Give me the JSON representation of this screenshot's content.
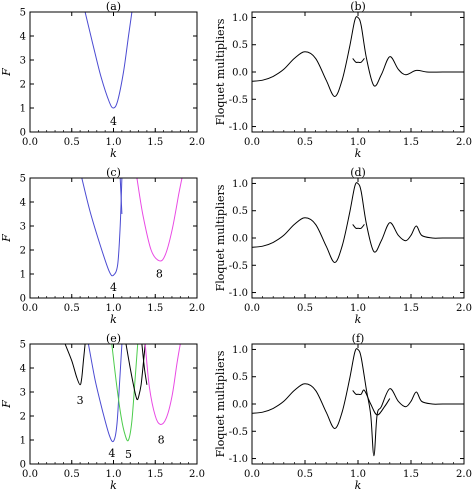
{
  "chart_data": [
    {
      "id": "a",
      "type": "line",
      "title": "(a)",
      "xlabel": "k",
      "ylabel": "F",
      "xlim": [
        0,
        2
      ],
      "ylim": [
        0,
        5
      ],
      "xticks": [
        "0.0",
        "0.5",
        "1.0",
        "1.5",
        "2.0"
      ],
      "yticks": [
        "0",
        "1",
        "2",
        "3",
        "4",
        "5"
      ],
      "series": [
        {
          "color": "#4b4bd2",
          "x": [
            0.66,
            0.75,
            0.85,
            0.95,
            1.0,
            1.05,
            1.12,
            1.18,
            1.22
          ],
          "y": [
            5.0,
            3.7,
            2.3,
            1.25,
            1.0,
            1.3,
            2.5,
            4.0,
            5.0
          ]
        }
      ],
      "annotations": [
        {
          "text": "4",
          "x": 1.0,
          "y": 0.3
        }
      ]
    },
    {
      "id": "b",
      "type": "line",
      "title": "(b)",
      "xlabel": "k",
      "ylabel": "Floquet multipliers",
      "xlim": [
        0,
        2
      ],
      "ylim": [
        -1.1,
        1.1
      ],
      "xticks": [
        "0.0",
        "0.5",
        "1.0",
        "1.5",
        "2.0"
      ],
      "yticks": [
        "-1.0",
        "-0.5",
        "0.0",
        "0.5",
        "1.0"
      ],
      "series": [
        {
          "color": "#000000",
          "x": [
            0,
            0.1,
            0.2,
            0.3,
            0.4,
            0.5,
            0.6,
            0.7,
            0.78,
            0.85,
            0.92,
            0.97,
            1.0,
            1.03,
            1.08,
            1.15,
            1.22,
            1.3,
            1.38,
            1.45,
            1.55,
            1.65,
            1.8,
            2.0
          ],
          "y": [
            -0.17,
            -0.15,
            -0.08,
            0.05,
            0.25,
            0.37,
            0.25,
            -0.15,
            -0.45,
            -0.15,
            0.45,
            0.95,
            1.0,
            0.85,
            0.25,
            -0.25,
            -0.05,
            0.28,
            0.05,
            -0.05,
            0.03,
            0.0,
            0.0,
            0.0
          ]
        },
        {
          "color": "#000000",
          "x": [
            0.95,
            0.98,
            1.0,
            1.03,
            1.06
          ],
          "y": [
            0.25,
            0.18,
            0.18,
            0.18,
            0.25
          ]
        }
      ]
    },
    {
      "id": "c",
      "type": "line",
      "title": "(c)",
      "xlabel": "k",
      "ylabel": "F",
      "xlim": [
        0,
        2
      ],
      "ylim": [
        0,
        5
      ],
      "xticks": [
        "0.0",
        "0.5",
        "1.0",
        "1.5",
        "2.0"
      ],
      "yticks": [
        "0",
        "1",
        "2",
        "3",
        "4",
        "5"
      ],
      "series": [
        {
          "color": "#4b4bd2",
          "x": [
            0.62,
            0.72,
            0.85,
            0.95,
            1.0,
            1.05,
            1.08,
            1.1
          ],
          "y": [
            5.0,
            3.6,
            2.1,
            1.1,
            0.95,
            1.4,
            3.0,
            5.0
          ]
        },
        {
          "color": "#4b4bd2",
          "x": [
            1.08,
            1.1
          ],
          "y": [
            5.0,
            3.5
          ]
        },
        {
          "color": "#e94ae4",
          "x": [
            1.28,
            1.35,
            1.45,
            1.55,
            1.62,
            1.7,
            1.78,
            1.82
          ],
          "y": [
            5.0,
            3.5,
            2.0,
            1.55,
            1.8,
            2.8,
            4.3,
            5.0
          ]
        }
      ],
      "annotations": [
        {
          "text": "4",
          "x": 1.0,
          "y": 0.3
        },
        {
          "text": "8",
          "x": 1.55,
          "y": 0.85
        }
      ]
    },
    {
      "id": "d",
      "type": "line",
      "title": "(d)",
      "xlabel": "k",
      "ylabel": "Floquet multipliers",
      "xlim": [
        0,
        2
      ],
      "ylim": [
        -1.1,
        1.1
      ],
      "xticks": [
        "0.0",
        "0.5",
        "1.0",
        "1.5",
        "2.0"
      ],
      "yticks": [
        "-1.0",
        "-0.5",
        "0.0",
        "0.5",
        "1.0"
      ],
      "series": [
        {
          "color": "#000000",
          "x": [
            0,
            0.1,
            0.2,
            0.3,
            0.4,
            0.5,
            0.6,
            0.7,
            0.78,
            0.85,
            0.92,
            0.97,
            1.0,
            1.03,
            1.08,
            1.15,
            1.22,
            1.3,
            1.38,
            1.45,
            1.5,
            1.55,
            1.6,
            1.7,
            1.8,
            2.0
          ],
          "y": [
            -0.17,
            -0.15,
            -0.08,
            0.05,
            0.25,
            0.37,
            0.25,
            -0.15,
            -0.45,
            -0.15,
            0.45,
            0.95,
            1.0,
            0.85,
            0.25,
            -0.25,
            -0.05,
            0.28,
            0.05,
            -0.05,
            0.05,
            0.22,
            0.05,
            0.0,
            0.0,
            0.0
          ]
        },
        {
          "color": "#000000",
          "x": [
            0.95,
            0.98,
            1.0,
            1.03,
            1.06
          ],
          "y": [
            0.25,
            0.18,
            0.18,
            0.18,
            0.25
          ]
        }
      ]
    },
    {
      "id": "e",
      "type": "line",
      "title": "(e)",
      "xlabel": "k",
      "ylabel": "F",
      "xlim": [
        0,
        2
      ],
      "ylim": [
        0,
        5
      ],
      "xticks": [
        "0.0",
        "0.5",
        "1.0",
        "1.5",
        "2.0"
      ],
      "yticks": [
        "0",
        "1",
        "2",
        "3",
        "4",
        "5"
      ],
      "series": [
        {
          "color": "#000000",
          "x": [
            0.42,
            0.5,
            0.56,
            0.6,
            0.62,
            0.64,
            0.66
          ],
          "y": [
            5.0,
            4.3,
            3.6,
            3.3,
            3.6,
            4.3,
            5.0
          ]
        },
        {
          "color": "#4b4bd2",
          "x": [
            0.7,
            0.78,
            0.87,
            0.95,
            1.0,
            1.04,
            1.07,
            1.1
          ],
          "y": [
            5.0,
            3.5,
            2.2,
            1.2,
            0.95,
            1.6,
            3.2,
            5.0
          ]
        },
        {
          "color": "#4ccc4c",
          "x": [
            0.98,
            1.03,
            1.09,
            1.14,
            1.18,
            1.22,
            1.26,
            1.29
          ],
          "y": [
            5.0,
            3.5,
            2.0,
            1.2,
            1.0,
            1.8,
            3.6,
            5.0
          ]
        },
        {
          "color": "#000000",
          "x": [
            1.15,
            1.2,
            1.25,
            1.28,
            1.3,
            1.33,
            1.36,
            1.38
          ],
          "y": [
            5.0,
            4.0,
            3.1,
            2.7,
            2.8,
            3.3,
            4.3,
            5.0
          ]
        },
        {
          "color": "#000000",
          "x": [
            1.34,
            1.37,
            1.4
          ],
          "y": [
            5.0,
            4.0,
            3.3
          ]
        },
        {
          "color": "#e94ae4",
          "x": [
            1.38,
            1.43,
            1.5,
            1.56,
            1.63,
            1.7,
            1.76,
            1.8
          ],
          "y": [
            5.0,
            3.2,
            2.0,
            1.65,
            1.9,
            2.8,
            4.2,
            5.0
          ]
        }
      ],
      "annotations": [
        {
          "text": "3",
          "x": 0.6,
          "y": 2.5
        },
        {
          "text": "4",
          "x": 0.98,
          "y": 0.3
        },
        {
          "text": "5",
          "x": 1.18,
          "y": 0.25
        },
        {
          "text": "8",
          "x": 1.57,
          "y": 0.85
        }
      ]
    },
    {
      "id": "f",
      "type": "line",
      "title": "(f)",
      "xlabel": "k",
      "ylabel": "Floquet multipliers",
      "xlim": [
        0,
        2
      ],
      "ylim": [
        -1.1,
        1.1
      ],
      "xticks": [
        "0.0",
        "0.5",
        "1.0",
        "1.5",
        "2.0"
      ],
      "yticks": [
        "-1.0",
        "-0.5",
        "0.0",
        "0.5",
        "1.0"
      ],
      "series": [
        {
          "color": "#000000",
          "x": [
            0,
            0.1,
            0.2,
            0.3,
            0.4,
            0.5,
            0.6,
            0.7,
            0.78,
            0.85,
            0.92,
            0.97,
            1.0,
            1.03,
            1.08,
            1.12,
            1.15,
            1.18,
            1.22,
            1.3,
            1.38,
            1.45,
            1.5,
            1.55,
            1.6,
            1.7,
            1.8,
            2.0
          ],
          "y": [
            -0.17,
            -0.15,
            -0.08,
            0.05,
            0.25,
            0.37,
            0.25,
            -0.15,
            -0.45,
            -0.15,
            0.45,
            0.95,
            1.0,
            0.85,
            0.25,
            -0.2,
            -0.95,
            -0.2,
            -0.05,
            0.28,
            0.05,
            -0.05,
            0.05,
            0.22,
            0.05,
            0.0,
            0.0,
            0.0
          ]
        },
        {
          "color": "#000000",
          "x": [
            0.95,
            0.98,
            1.0,
            1.03,
            1.06,
            1.12,
            1.18,
            1.25,
            1.3
          ],
          "y": [
            0.25,
            0.18,
            0.18,
            0.18,
            0.25,
            0.0,
            -0.2,
            -0.05,
            0.1
          ]
        }
      ]
    }
  ]
}
